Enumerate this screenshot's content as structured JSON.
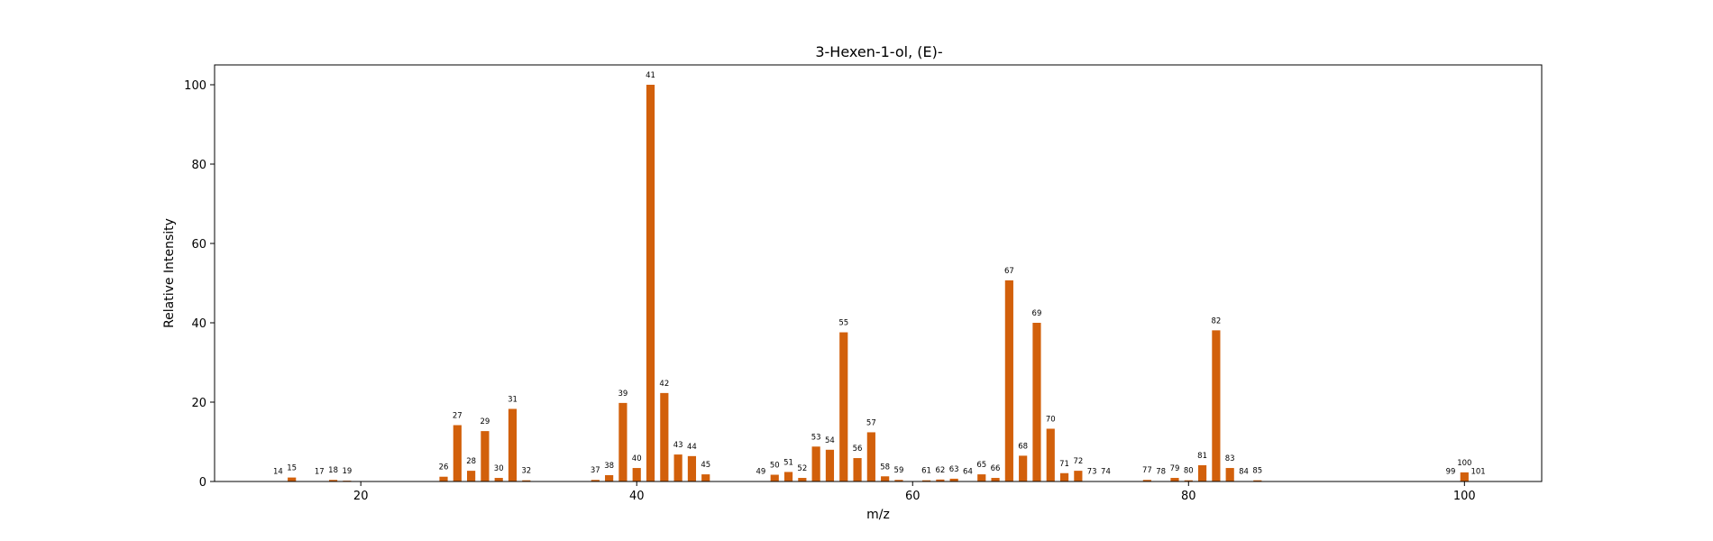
{
  "chart_data": {
    "type": "bar",
    "title": "3-Hexen-1-ol, (E)-",
    "xlabel": "m/z",
    "ylabel": "Relative Intensity",
    "xlim": [
      9.4,
      105.6
    ],
    "ylim": [
      0,
      105
    ],
    "xticks": [
      20,
      40,
      60,
      80,
      100
    ],
    "yticks": [
      0,
      20,
      40,
      60,
      80,
      100
    ],
    "grid": false,
    "bar_color": "#d2600b",
    "x": [
      14,
      15,
      17,
      18,
      19,
      26,
      27,
      28,
      29,
      30,
      31,
      32,
      37,
      38,
      39,
      40,
      41,
      42,
      43,
      44,
      45,
      49,
      50,
      51,
      52,
      53,
      54,
      55,
      56,
      57,
      58,
      59,
      61,
      62,
      63,
      64,
      65,
      66,
      67,
      68,
      69,
      70,
      71,
      72,
      73,
      74,
      77,
      78,
      79,
      80,
      81,
      82,
      83,
      84,
      85,
      99,
      100,
      101
    ],
    "values": [
      0.1,
      1.0,
      0.1,
      0.4,
      0.2,
      1.2,
      14.2,
      2.7,
      12.7,
      0.9,
      18.3,
      0.3,
      0.4,
      1.6,
      19.8,
      3.4,
      100,
      22.3,
      6.8,
      6.4,
      1.8,
      0.1,
      1.7,
      2.4,
      0.9,
      8.8,
      8.0,
      37.6,
      5.9,
      12.4,
      1.3,
      0.4,
      0.3,
      0.5,
      0.7,
      0.1,
      1.8,
      0.9,
      50.7,
      6.5,
      40.0,
      13.3,
      2.1,
      2.7,
      0.1,
      0.1,
      0.4,
      0.1,
      0.9,
      0.3,
      4.1,
      38.1,
      3.4,
      0.1,
      0.3,
      0.1,
      2.3,
      0.1
    ]
  }
}
